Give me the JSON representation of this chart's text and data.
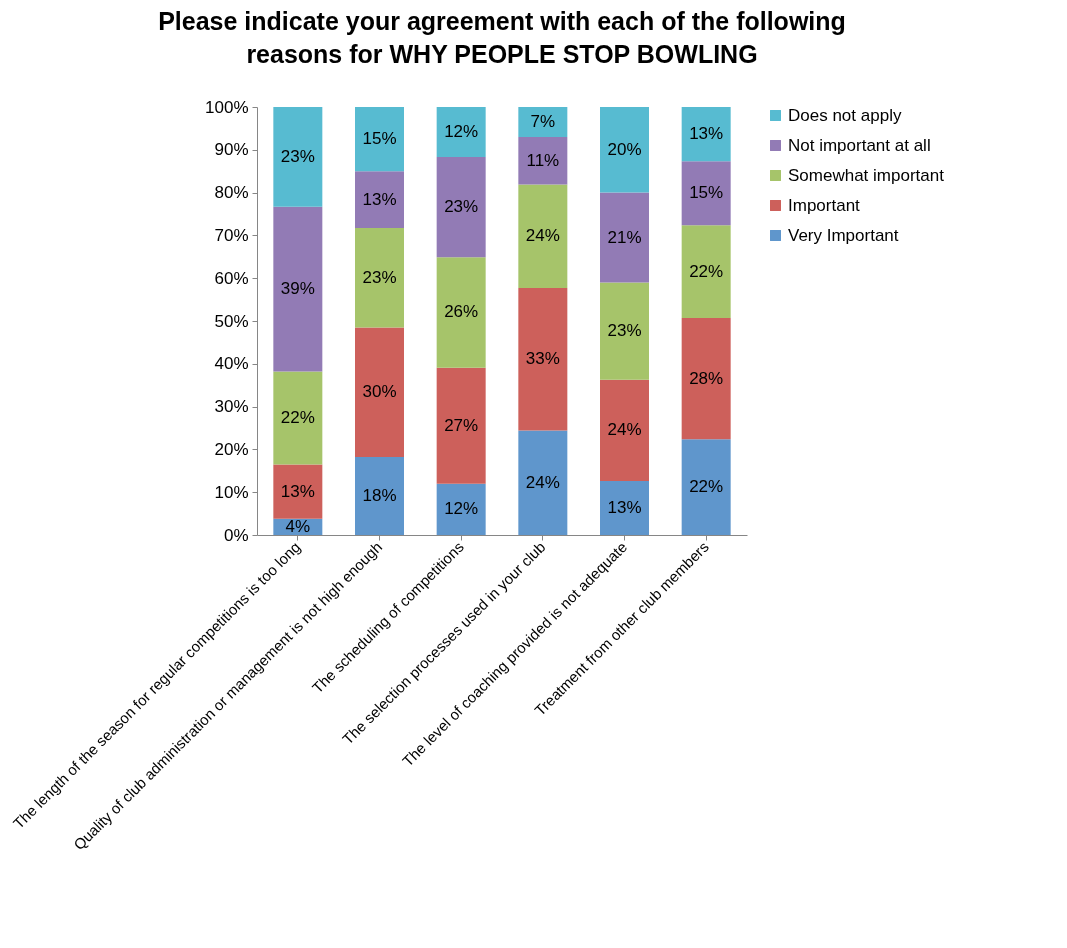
{
  "chart_data": {
    "type": "bar",
    "stacked": true,
    "title": "Please indicate your agreement with each of the following\nreasons for WHY PEOPLE STOP BOWLING",
    "categories": [
      "The length of the season for regular competitions is too long",
      "Quality of club administration or management is not high enough",
      "The scheduling of competitions",
      "The selection processes used in your club",
      "The level of coaching provided is not adequate",
      "Treatment from other club members"
    ],
    "series": [
      {
        "name": "Very Important",
        "color": "#5f96cc",
        "values": [
          3.8,
          18.2,
          12.0,
          24.4,
          12.6,
          22.4
        ],
        "value_labels": [
          "4%",
          "18%",
          "12%",
          "24%",
          "13%",
          "22%"
        ]
      },
      {
        "name": "Important",
        "color": "#cd605b",
        "values": [
          12.7,
          30.3,
          27.1,
          33.3,
          23.7,
          28.3
        ],
        "value_labels": [
          "13%",
          "30%",
          "27%",
          "33%",
          "24%",
          "28%"
        ]
      },
      {
        "name": "Somewhat important",
        "color": "#a6c46a",
        "values": [
          21.7,
          23.2,
          25.8,
          24.2,
          22.7,
          21.7
        ],
        "value_labels": [
          "22%",
          "23%",
          "26%",
          "24%",
          "23%",
          "22%"
        ]
      },
      {
        "name": "Not important at all",
        "color": "#927bb5",
        "values": [
          38.5,
          13.3,
          23.4,
          11.1,
          21.0,
          14.9
        ],
        "value_labels": [
          "39%",
          "13%",
          "23%",
          "11%",
          "21%",
          "15%"
        ]
      },
      {
        "name": "Does not apply",
        "color": "#57bbd1",
        "values": [
          23.3,
          15.0,
          11.7,
          7.0,
          20.0,
          12.7
        ],
        "value_labels": [
          "23%",
          "15%",
          "12%",
          "7%",
          "20%",
          "13%"
        ]
      }
    ],
    "ylim": [
      0,
      100
    ],
    "yticks": [
      {
        "value": 0,
        "label": "0%"
      },
      {
        "value": 10,
        "label": "10%"
      },
      {
        "value": 20,
        "label": "20%"
      },
      {
        "value": 30,
        "label": "30%"
      },
      {
        "value": 40,
        "label": "40%"
      },
      {
        "value": 50,
        "label": "50%"
      },
      {
        "value": 60,
        "label": "60%"
      },
      {
        "value": 70,
        "label": "70%"
      },
      {
        "value": 80,
        "label": "80%"
      },
      {
        "value": 90,
        "label": "90%"
      },
      {
        "value": 100,
        "label": "100%"
      }
    ],
    "grid": false,
    "legend": "right"
  }
}
